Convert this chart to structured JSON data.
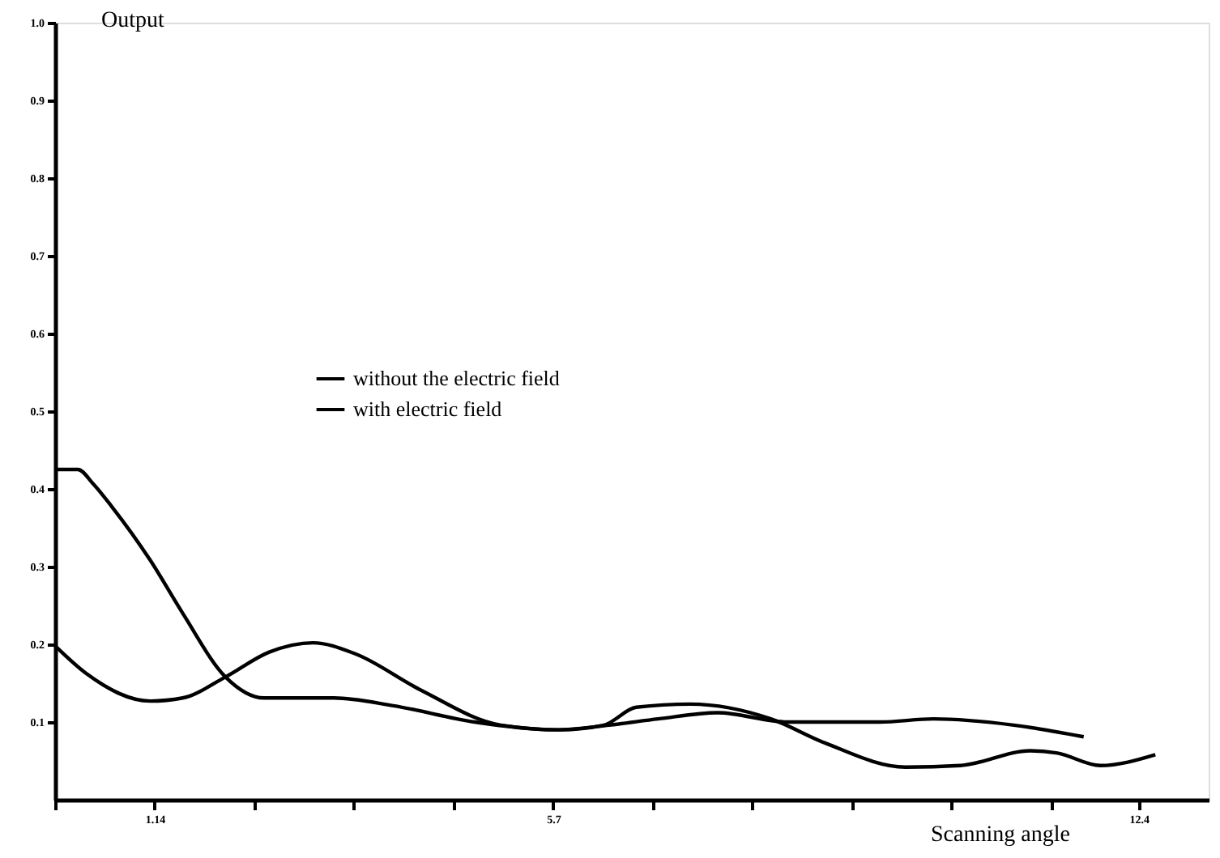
{
  "chart_data": {
    "type": "line",
    "xlabel": "Scanning angle",
    "ylabel": "Output",
    "xlim": [
      0,
      13.2
    ],
    "ylim": [
      0,
      1.0
    ],
    "xticks": [
      {
        "value": 0,
        "label": null
      },
      1.14,
      {
        "value": 2.28,
        "label": null
      },
      {
        "value": 3.42,
        "label": null
      },
      {
        "value": 4.56,
        "label": null
      },
      5.7,
      {
        "value": 6.84,
        "label": null
      },
      {
        "value": 7.98,
        "label": null
      },
      {
        "value": 9.12,
        "label": null
      },
      {
        "value": 10.26,
        "label": null
      },
      {
        "value": 11.4,
        "label": null
      },
      12.4
    ],
    "yticks": [
      0.1,
      0.2,
      0.3,
      0.4,
      0.5,
      0.6,
      0.7,
      0.8,
      0.9,
      {
        "value": 1.0,
        "label": "1.0"
      }
    ],
    "grid": false,
    "legend": "left",
    "marker": "none",
    "line_style": "solid",
    "series": [
      {
        "name": "without the electric field",
        "color": "#000000",
        "x": [
          0,
          0.26,
          0.44,
          0.65,
          1.09,
          1.46,
          1.95,
          2.39,
          3.19,
          3.87,
          4.8,
          5.73,
          6.34,
          6.9,
          7.58,
          8.38,
          9.44,
          10.05,
          10.97,
          11.77
        ],
        "values": [
          0.425,
          0.425,
          0.406,
          0.377,
          0.308,
          0.24,
          0.158,
          0.131,
          0.131,
          0.121,
          0.1,
          0.09,
          0.096,
          0.104,
          0.112,
          0.1,
          0.1,
          0.104,
          0.096,
          0.081
        ]
      },
      {
        "name": "with electric field",
        "color": "#000000",
        "x": [
          0,
          0.35,
          1.09,
          1.46,
          1.95,
          2.45,
          2.95,
          3.43,
          4.17,
          5.1,
          5.78,
          6.28,
          6.65,
          7.27,
          8.19,
          8.81,
          9.73,
          10.36,
          11.16,
          11.47,
          11.96,
          12.59
        ],
        "values": [
          0.198,
          0.163,
          0.127,
          0.131,
          0.158,
          0.19,
          0.202,
          0.188,
          0.142,
          0.096,
          0.09,
          0.096,
          0.119,
          0.123,
          0.104,
          0.073,
          0.042,
          0.044,
          0.063,
          0.06,
          0.044,
          0.058
        ]
      }
    ]
  }
}
